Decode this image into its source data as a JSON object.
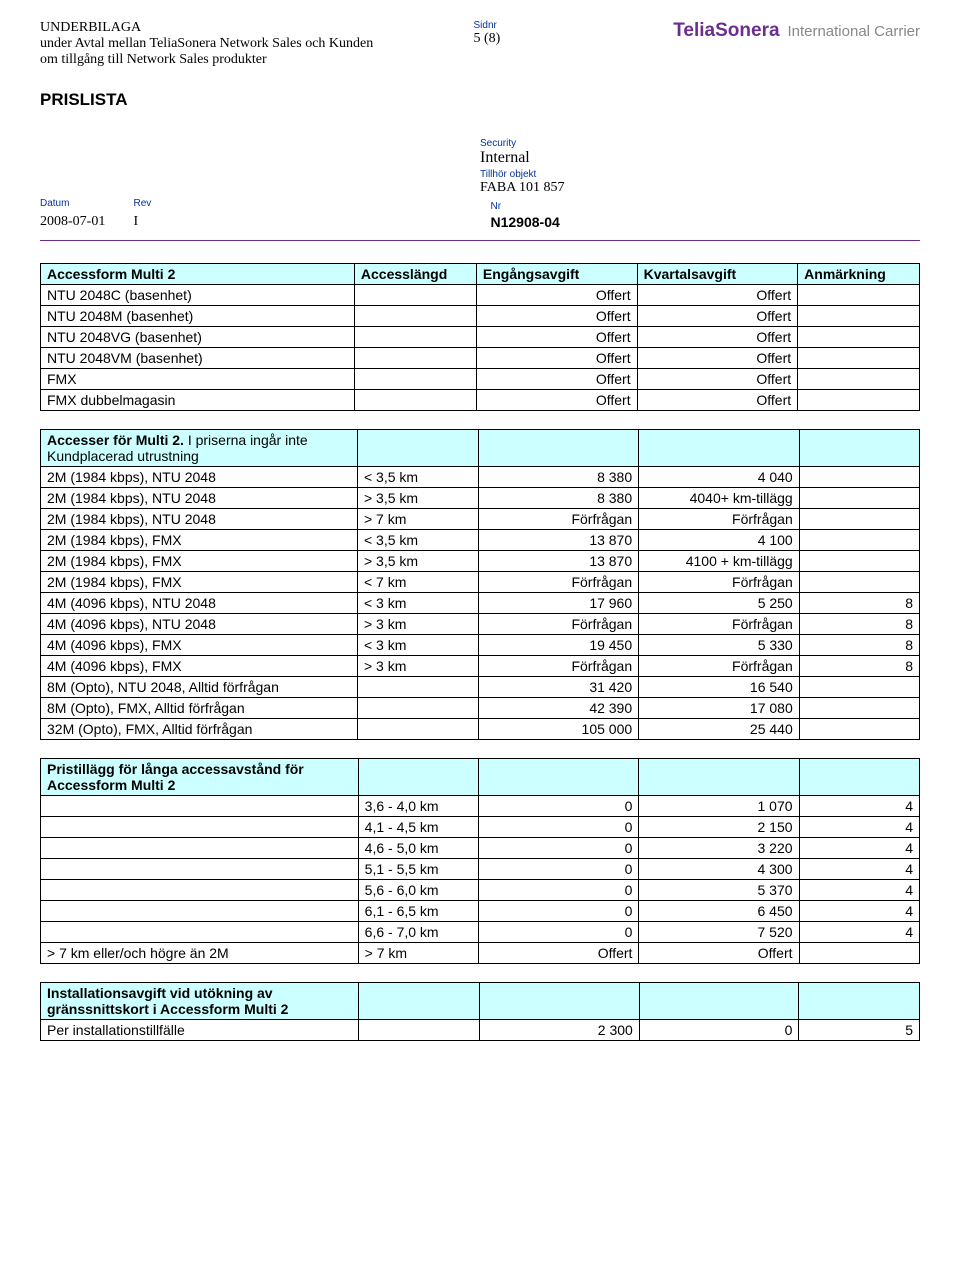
{
  "header": {
    "underbilaga": "UNDERBILAGA",
    "line2": "under Avtal mellan TeliaSonera Network Sales och Kunden",
    "line3": "om tillgång till Network Sales produkter",
    "sidnr_label": "Sidnr",
    "sidnr_value": "5 (8)",
    "brand": "TeliaSonera",
    "brand_sub": "International Carrier",
    "title": "PRISLISTA",
    "security_label": "Security",
    "security_value": "Internal",
    "tillhor_label": "Tillhör objekt",
    "tillhor_value": "FABA 101 857",
    "datum_label": "Datum",
    "rev_label": "Rev",
    "nr_label": "Nr",
    "datum_value": "2008-07-01",
    "rev_value": "I",
    "nr_value": "N12908-04"
  },
  "table1": {
    "h1": "Accessform Multi 2",
    "h2": "Accesslängd",
    "h3": "Engångsavgift",
    "h4": "Kvartalsavgift",
    "h5": "Anmärkning",
    "rows": [
      {
        "c1": "NTU 2048C (basenhet)",
        "c2": "",
        "c3": "Offert",
        "c4": "Offert",
        "c5": ""
      },
      {
        "c1": "NTU 2048M (basenhet)",
        "c2": "",
        "c3": "Offert",
        "c4": "Offert",
        "c5": ""
      },
      {
        "c1": "NTU 2048VG (basenhet)",
        "c2": "",
        "c3": "Offert",
        "c4": "Offert",
        "c5": ""
      },
      {
        "c1": "NTU 2048VM (basenhet)",
        "c2": "",
        "c3": "Offert",
        "c4": "Offert",
        "c5": ""
      },
      {
        "c1": "FMX",
        "c2": "",
        "c3": "Offert",
        "c4": "Offert",
        "c5": ""
      },
      {
        "c1": "FMX dubbelmagasin",
        "c2": "",
        "c3": "Offert",
        "c4": "Offert",
        "c5": ""
      }
    ]
  },
  "table2": {
    "h1a": "Accesser för Multi 2.",
    "h1b": " I priserna ingår inte Kundplacerad utrustning",
    "rows": [
      {
        "c1": "2M (1984 kbps), NTU 2048",
        "c2": "< 3,5 km",
        "c3": "8 380",
        "c4": "4 040",
        "c5": "",
        "num3": true,
        "num4": true
      },
      {
        "c1": "2M (1984 kbps), NTU 2048",
        "c2": "> 3,5 km",
        "c3": "8 380",
        "c4": "4040+ km-tillägg",
        "c5": "",
        "num3": true,
        "num4": true
      },
      {
        "c1": "2M (1984 kbps), NTU 2048",
        "c2": "> 7 km",
        "c3": "Förfrågan",
        "c4": "Förfrågan",
        "c5": "",
        "num3": true,
        "num4": true
      },
      {
        "c1": "2M (1984 kbps), FMX",
        "c2": "< 3,5 km",
        "c3": "13 870",
        "c4": "4 100",
        "c5": "",
        "num3": true,
        "num4": true
      },
      {
        "c1": "2M (1984 kbps), FMX",
        "c2": "> 3,5 km",
        "c3": "13 870",
        "c4": "4100 + km-tillägg",
        "c5": "",
        "num3": true,
        "num4": true
      },
      {
        "c1": "2M (1984 kbps), FMX",
        "c2": "< 7 km",
        "c3": "Förfrågan",
        "c4": "Förfrågan",
        "c5": "",
        "num3": true,
        "num4": true
      },
      {
        "c1": "4M (4096 kbps), NTU 2048",
        "c2": "< 3 km",
        "c3": "17 960",
        "c4": "5 250",
        "c5": "8",
        "num3": true,
        "num4": true,
        "num5": true
      },
      {
        "c1": "4M (4096 kbps), NTU 2048",
        "c2": "> 3 km",
        "c3": "Förfrågan",
        "c4": "Förfrågan",
        "c5": "8",
        "num3": true,
        "num4": true,
        "num5": true
      },
      {
        "c1": "4M (4096 kbps), FMX",
        "c2": "< 3 km",
        "c3": "19 450",
        "c4": "5 330",
        "c5": "8",
        "num3": true,
        "num4": true,
        "num5": true
      },
      {
        "c1": "4M (4096 kbps), FMX",
        "c2": "> 3 km",
        "c3": "Förfrågan",
        "c4": "Förfrågan",
        "c5": "8",
        "num3": true,
        "num4": true,
        "num5": true
      },
      {
        "c1": "8M (Opto), NTU 2048, Alltid förfrågan",
        "c2": "",
        "c3": "31 420",
        "c4": "16 540",
        "c5": "",
        "num3": true,
        "num4": true
      },
      {
        "c1": "8M (Opto), FMX, Alltid förfrågan",
        "c2": "",
        "c3": "42 390",
        "c4": "17 080",
        "c5": "",
        "num3": true,
        "num4": true
      },
      {
        "c1": "32M (Opto), FMX, Alltid förfrågan",
        "c2": "",
        "c3": "105 000",
        "c4": "25 440",
        "c5": "",
        "num3": true,
        "num4": true
      }
    ]
  },
  "table3": {
    "h1": "Pristillägg för långa accessavstånd för Accessform Multi 2",
    "rows": [
      {
        "c1": "",
        "c2": "3,6 - 4,0 km",
        "c3": "0",
        "c4": "1 070",
        "c5": "4"
      },
      {
        "c1": "",
        "c2": "4,1 - 4,5 km",
        "c3": "0",
        "c4": "2 150",
        "c5": "4"
      },
      {
        "c1": "",
        "c2": "4,6 - 5,0 km",
        "c3": "0",
        "c4": "3 220",
        "c5": "4"
      },
      {
        "c1": "",
        "c2": "5,1 - 5,5 km",
        "c3": "0",
        "c4": "4 300",
        "c5": "4"
      },
      {
        "c1": "",
        "c2": "5,6 - 6,0 km",
        "c3": "0",
        "c4": "5 370",
        "c5": "4"
      },
      {
        "c1": "",
        "c2": "6,1 - 6,5 km",
        "c3": "0",
        "c4": "6 450",
        "c5": "4"
      },
      {
        "c1": "",
        "c2": "6,6 - 7,0 km",
        "c3": "0",
        "c4": "7 520",
        "c5": "4"
      },
      {
        "c1": "> 7 km eller/och högre än 2M",
        "c2": "> 7 km",
        "c3": "Offert",
        "c4": "Offert",
        "c5": ""
      }
    ]
  },
  "table4": {
    "h1": "Installationsavgift vid utökning av gränssnittskort i Accessform Multi 2",
    "rows": [
      {
        "c1": "Per installationstillfälle",
        "c2": "",
        "c3": "2 300",
        "c4": "0",
        "c5": "5"
      }
    ]
  }
}
